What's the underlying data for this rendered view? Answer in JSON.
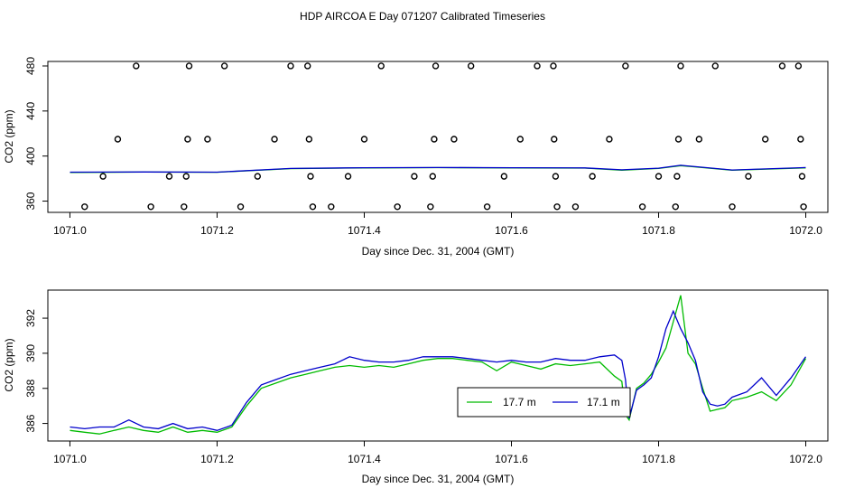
{
  "title": "HDP AIRCOA E  Day 071207  Calibrated Timeseries",
  "chart_data": [
    {
      "type": "line",
      "xlabel": "Day since Dec. 31, 2004 (GMT)",
      "ylabel": "CO2 (ppm)",
      "xlim": [
        1070.97,
        1072.03
      ],
      "ylim": [
        350,
        484
      ],
      "x_ticks": [
        "1071.0",
        "1071.2",
        "1071.4",
        "1071.6",
        "1071.8",
        "1072.0"
      ],
      "y_ticks": [
        "360",
        "400",
        "440",
        "480"
      ],
      "series": [
        {
          "color": "#00bb00",
          "x": [
            1071.0,
            1071.1,
            1071.2,
            1071.3,
            1071.4,
            1071.5,
            1071.6,
            1071.7,
            1071.75,
            1071.8,
            1071.83,
            1071.9,
            1072.0
          ],
          "values": [
            385.5,
            385.8,
            385.6,
            388.8,
            389.5,
            389.7,
            389.5,
            389.3,
            387.5,
            389.0,
            391.5,
            387.5,
            389.5
          ]
        },
        {
          "color": "#0000cc",
          "x": [
            1071.0,
            1071.1,
            1071.2,
            1071.3,
            1071.4,
            1071.5,
            1071.6,
            1071.7,
            1071.75,
            1071.8,
            1071.83,
            1071.9,
            1072.0
          ],
          "values": [
            385.7,
            385.9,
            385.7,
            389.0,
            389.6,
            389.8,
            389.6,
            389.5,
            387.8,
            389.2,
            391.8,
            387.6,
            389.8
          ]
        }
      ],
      "scatter": {
        "x": [
          1071.02,
          1071.045,
          1071.065,
          1071.09,
          1071.11,
          1071.135,
          1071.155,
          1071.158,
          1071.16,
          1071.162,
          1071.187,
          1071.21,
          1071.232,
          1071.255,
          1071.278,
          1071.3,
          1071.323,
          1071.325,
          1071.327,
          1071.33,
          1071.355,
          1071.378,
          1071.4,
          1071.423,
          1071.445,
          1071.468,
          1071.49,
          1071.493,
          1071.495,
          1071.497,
          1071.522,
          1071.545,
          1071.567,
          1071.59,
          1071.612,
          1071.635,
          1071.657,
          1071.658,
          1071.66,
          1071.662,
          1071.687,
          1071.71,
          1071.733,
          1071.755,
          1071.778,
          1071.8,
          1071.823,
          1071.825,
          1071.827,
          1071.83,
          1071.855,
          1071.877,
          1071.9,
          1071.922,
          1071.945,
          1071.968,
          1071.99,
          1071.993,
          1071.995,
          1071.997
        ],
        "values": [
          355,
          382,
          415,
          480,
          355,
          382,
          355,
          382,
          415,
          480,
          415,
          480,
          355,
          382,
          415,
          480,
          480,
          415,
          382,
          355,
          355,
          382,
          415,
          480,
          355,
          382,
          355,
          382,
          415,
          480,
          415,
          480,
          355,
          382,
          415,
          480,
          480,
          415,
          382,
          355,
          355,
          382,
          415,
          480,
          355,
          382,
          355,
          382,
          415,
          480,
          415,
          480,
          355,
          382,
          415,
          480,
          480,
          415,
          382,
          355
        ]
      }
    },
    {
      "type": "line",
      "xlabel": "Day since Dec. 31, 2004 (GMT)",
      "ylabel": "CO2 (ppm)",
      "xlim": [
        1070.97,
        1072.03
      ],
      "ylim": [
        385.0,
        393.6
      ],
      "x_ticks": [
        "1071.0",
        "1071.2",
        "1071.4",
        "1071.6",
        "1071.8",
        "1072.0"
      ],
      "y_ticks": [
        "386",
        "388",
        "390",
        "392"
      ],
      "legend_position": "center-right",
      "series": [
        {
          "name": "17.7 m",
          "color": "#00bb00",
          "x": [
            1071.0,
            1071.02,
            1071.04,
            1071.06,
            1071.08,
            1071.1,
            1071.12,
            1071.14,
            1071.16,
            1071.18,
            1071.2,
            1071.22,
            1071.24,
            1071.26,
            1071.28,
            1071.3,
            1071.32,
            1071.34,
            1071.36,
            1071.38,
            1071.4,
            1071.42,
            1071.44,
            1071.46,
            1071.48,
            1071.5,
            1071.52,
            1071.54,
            1071.56,
            1071.58,
            1071.6,
            1071.62,
            1071.64,
            1071.66,
            1071.68,
            1071.7,
            1071.72,
            1071.74,
            1071.75,
            1071.755,
            1071.76,
            1071.77,
            1071.78,
            1071.79,
            1071.8,
            1071.81,
            1071.82,
            1071.83,
            1071.84,
            1071.85,
            1071.86,
            1071.87,
            1071.88,
            1071.89,
            1071.9,
            1071.92,
            1071.94,
            1071.96,
            1071.98,
            1072.0
          ],
          "values": [
            385.6,
            385.5,
            385.4,
            385.6,
            385.8,
            385.6,
            385.5,
            385.8,
            385.5,
            385.6,
            385.5,
            385.8,
            387.0,
            388.0,
            388.3,
            388.6,
            388.8,
            389.0,
            389.2,
            389.3,
            389.2,
            389.3,
            389.2,
            389.4,
            389.6,
            389.7,
            389.7,
            389.6,
            389.5,
            389.0,
            389.5,
            389.3,
            389.1,
            389.4,
            389.3,
            389.4,
            389.5,
            388.7,
            388.4,
            386.5,
            386.2,
            388.0,
            388.3,
            388.8,
            389.5,
            390.3,
            391.8,
            393.3,
            390.0,
            389.4,
            388.0,
            386.7,
            386.8,
            386.9,
            387.3,
            387.5,
            387.8,
            387.3,
            388.2,
            389.7
          ]
        },
        {
          "name": "17.1 m",
          "color": "#0000cc",
          "x": [
            1071.0,
            1071.02,
            1071.04,
            1071.06,
            1071.08,
            1071.1,
            1071.12,
            1071.14,
            1071.16,
            1071.18,
            1071.2,
            1071.22,
            1071.24,
            1071.26,
            1071.28,
            1071.3,
            1071.32,
            1071.34,
            1071.36,
            1071.38,
            1071.4,
            1071.42,
            1071.44,
            1071.46,
            1071.48,
            1071.5,
            1071.52,
            1071.54,
            1071.56,
            1071.58,
            1071.6,
            1071.62,
            1071.64,
            1071.66,
            1071.68,
            1071.7,
            1071.72,
            1071.74,
            1071.75,
            1071.755,
            1071.76,
            1071.77,
            1071.78,
            1071.79,
            1071.8,
            1071.81,
            1071.82,
            1071.83,
            1071.84,
            1071.85,
            1071.86,
            1071.87,
            1071.88,
            1071.89,
            1071.9,
            1071.92,
            1071.94,
            1071.96,
            1071.98,
            1072.0
          ],
          "values": [
            385.8,
            385.7,
            385.8,
            385.8,
            386.2,
            385.8,
            385.7,
            386.0,
            385.7,
            385.8,
            385.6,
            385.9,
            387.2,
            388.2,
            388.5,
            388.8,
            389.0,
            389.2,
            389.4,
            389.8,
            389.6,
            389.5,
            389.5,
            389.6,
            389.8,
            389.8,
            389.8,
            389.7,
            389.6,
            389.5,
            389.6,
            389.5,
            389.5,
            389.7,
            389.6,
            389.6,
            389.8,
            389.9,
            389.6,
            388.5,
            386.3,
            387.9,
            388.2,
            388.6,
            389.8,
            391.4,
            392.4,
            391.4,
            390.6,
            389.6,
            387.8,
            387.1,
            387.0,
            387.1,
            387.5,
            387.8,
            388.6,
            387.6,
            388.6,
            389.8
          ]
        }
      ]
    }
  ]
}
